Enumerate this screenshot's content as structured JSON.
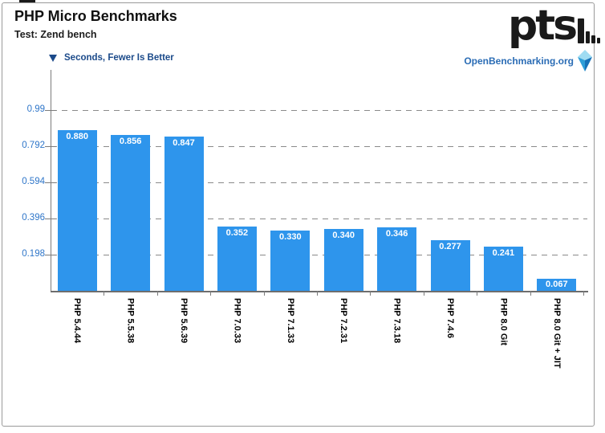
{
  "header": {
    "title": "PHP Micro Benchmarks",
    "subtitle": "Test: Zend bench",
    "logo_text": "pts",
    "site_link": "OpenBenchmarking.org"
  },
  "chart_data": {
    "type": "bar",
    "title": "PHP Micro Benchmarks",
    "subtitle": "Test: Zend bench",
    "legend": "Seconds, Fewer Is Better",
    "legend_position": "top-left",
    "lower_is_better": true,
    "categories": [
      "PHP 5.4.44",
      "PHP 5.5.38",
      "PHP 5.6.39",
      "PHP 7.0.33",
      "PHP 7.1.33",
      "PHP 7.2.31",
      "PHP 7.3.18",
      "PHP 7.4.6",
      "PHP 8.0 Git",
      "PHP 8.0 Git + JIT"
    ],
    "values": [
      0.88,
      0.856,
      0.847,
      0.352,
      0.33,
      0.34,
      0.346,
      0.277,
      0.241,
      0.067
    ],
    "value_labels": [
      "0.880",
      "0.856",
      "0.847",
      "0.352",
      "0.330",
      "0.340",
      "0.346",
      "0.277",
      "0.241",
      "0.067"
    ],
    "ylabel": "Seconds",
    "yticks": [
      0.198,
      0.396,
      0.594,
      0.792,
      0.99
    ],
    "ytick_labels": [
      "0.198",
      "0.396",
      "0.594",
      "0.792",
      "0.99"
    ],
    "ylim": [
      0,
      1.21
    ],
    "grid": "dashed-horizontal",
    "colors": {
      "bar": "#2e95ec",
      "axis": "#7b7b7b",
      "grid": "#8a8a8a",
      "ytick_label": "#2f76c9",
      "legend_text": "#1b4a8a",
      "value_label": "#ffffff",
      "category_label": "#000000"
    }
  }
}
